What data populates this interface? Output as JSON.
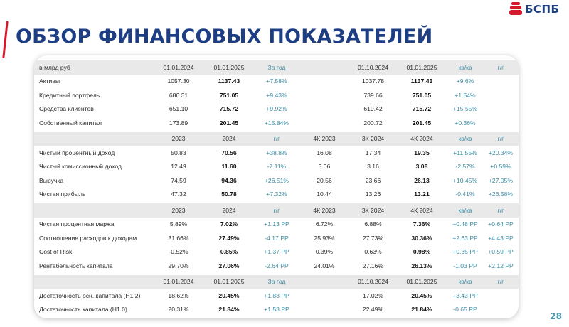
{
  "header": {
    "title": "ОБЗОР ФИНАНСОВЫХ ПОКАЗАТЕЛЕЙ",
    "logo_text": "БСПБ",
    "page_number": "28"
  },
  "colors": {
    "brand_blue": "#1d3e83",
    "accent_red": "#d7182a",
    "delta_teal": "#3b8ea5",
    "header_grey": "#e9e9e9"
  },
  "table": {
    "sections": [
      {
        "header": [
          "в млрд руб",
          "01.01.2024",
          "01.01.2025",
          "За год",
          "",
          "01.10.2024",
          "01.01.2025",
          "кв/кв",
          "г/г"
        ],
        "rows": [
          [
            "Активы",
            "1057.30",
            "1137.43",
            "+7.58%",
            "",
            "1037.78",
            "1137.43",
            "+9.6%",
            ""
          ],
          [
            "Кредитный портфель",
            "686.31",
            "751.05",
            "+9.43%",
            "",
            "739.66",
            "751.05",
            "+1.54%",
            ""
          ],
          [
            "Средства клиентов",
            "651.10",
            "715.72",
            "+9.92%",
            "",
            "619.42",
            "715.72",
            "+15.55%",
            ""
          ],
          [
            "Собственный капитал",
            "173.89",
            "201.45",
            "+15.84%",
            "",
            "200.72",
            "201.45",
            "+0.36%",
            ""
          ]
        ]
      },
      {
        "header": [
          "",
          "2023",
          "2024",
          "г/г",
          "4К 2023",
          "3К 2024",
          "4К 2024",
          "кв/кв",
          "г/г"
        ],
        "rows": [
          [
            "Чистый процентный доход",
            "50.83",
            "70.56",
            "+38.8%",
            "16.08",
            "17.34",
            "19.35",
            "+11.55%",
            "+20.34%"
          ],
          [
            "Чистый комиссионный доход",
            "12.49",
            "11.60",
            "-7.11%",
            "3.06",
            "3.16",
            "3.08",
            "-2.57%",
            "+0.59%"
          ],
          [
            "Выручка",
            "74.59",
            "94.36",
            "+26.51%",
            "20.56",
            "23.66",
            "26.13",
            "+10.45%",
            "+27.05%"
          ],
          [
            "Чистая прибыль",
            "47.32",
            "50.78",
            "+7.32%",
            "10.44",
            "13.26",
            "13.21",
            "-0.41%",
            "+26.58%"
          ]
        ]
      },
      {
        "header": [
          "",
          "2023",
          "2024",
          "г/г",
          "4К 2023",
          "3К 2024",
          "4К 2024",
          "кв/кв",
          "г/г"
        ],
        "rows": [
          [
            "Чистая процентная маржа",
            "5.89%",
            "7.02%",
            "+1.13 PP",
            "6.72%",
            "6.88%",
            "7.36%",
            "+0.48 PP",
            "+0.64 PP"
          ],
          [
            "Соотношение расходов к доходам",
            "31.66%",
            "27.49%",
            "-4.17 PP",
            "25.93%",
            "27.73%",
            "30.36%",
            "+2.63 PP",
            "+4.43 PP"
          ],
          [
            "Cost of Risk",
            "-0.52%",
            "0.85%",
            "+1.37 PP",
            "0.39%",
            "0.63%",
            "0.98%",
            "+0.35 PP",
            "+0.59 PP"
          ],
          [
            "Рентабельность капитала",
            "29.70%",
            "27.06%",
            "-2.64 PP",
            "24.01%",
            "27.16%",
            "26.13%",
            "-1.03 PP",
            "+2.12 PP"
          ]
        ]
      },
      {
        "header": [
          "",
          "01.01.2024",
          "01.01.2025",
          "За год",
          "",
          "01.10.2024",
          "01.01.2025",
          "кв/кв",
          "г/г"
        ],
        "rows": [
          [
            "Достаточность осн. капитала (Н1.2)",
            "18.62%",
            "20.45%",
            "+1.83 PP",
            "",
            "17.02%",
            "20.45%",
            "+3.43 PP",
            ""
          ],
          [
            "Достаточность капитала (Н1.0)",
            "20.31%",
            "21.84%",
            "+1.53 PP",
            "",
            "22.49%",
            "21.84%",
            "-0.65 PP",
            ""
          ]
        ]
      }
    ]
  }
}
